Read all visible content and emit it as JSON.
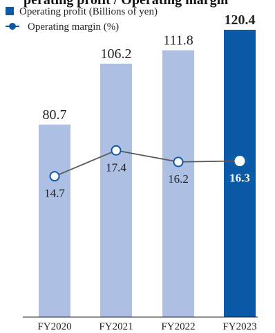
{
  "header": {
    "title_fragment": "perating profit / Operating margin"
  },
  "colors": {
    "bar": "#adbfe3",
    "bar_highlight": "#0b5aa7",
    "line": "#5a5a5a",
    "marker_stroke": "#0b5aa7",
    "marker_fill": "#ffffff"
  },
  "chart_data": {
    "type": "bar",
    "categories": [
      "FY2020",
      "FY2021",
      "FY2022",
      "FY2023"
    ],
    "series": [
      {
        "name": "Operating profit (Billions of yen)",
        "type": "bar",
        "values": [
          80.7,
          106.2,
          111.8,
          120.4
        ],
        "labels": [
          "80.7",
          "106.2",
          "111.8",
          "120.4"
        ]
      },
      {
        "name": "Operating margin (%)",
        "type": "line",
        "values": [
          14.7,
          17.4,
          16.2,
          16.3
        ],
        "labels": [
          "14.7",
          "17.4",
          "16.2",
          "16.3"
        ]
      }
    ],
    "highlight_category": "FY2023",
    "ylim_bar": [
      0,
      120.4
    ],
    "ylim_line": [
      0,
      30
    ],
    "legend": {
      "position": "top-left"
    },
    "grid": false
  }
}
